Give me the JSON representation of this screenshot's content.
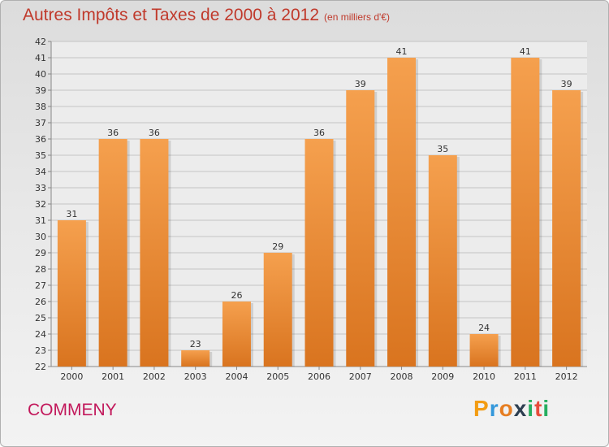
{
  "chart_data": {
    "type": "bar",
    "title": "Autres Impôts et Taxes de 2000 à 2012",
    "unit": "(en milliers d'€)",
    "categories": [
      "2000",
      "2001",
      "2002",
      "2003",
      "2004",
      "2005",
      "2006",
      "2007",
      "2008",
      "2009",
      "2010",
      "2011",
      "2012"
    ],
    "values": [
      31,
      36,
      36,
      23,
      26,
      29,
      36,
      39,
      41,
      35,
      24,
      41,
      39
    ],
    "ylim": [
      22,
      42
    ],
    "yticks": [
      22,
      23,
      24,
      25,
      26,
      27,
      28,
      29,
      30,
      31,
      32,
      33,
      34,
      35,
      36,
      37,
      38,
      39,
      40,
      41,
      42
    ],
    "grid": true,
    "bar_color_top": "#f5a04e",
    "bar_color_bottom": "#d9741f"
  },
  "footer": {
    "city": "COMMENY",
    "logo": {
      "letters": [
        "P",
        "r",
        "o",
        "x",
        "i",
        "t",
        "i"
      ],
      "colors": [
        "#f39c12",
        "#3498db",
        "#e67e22",
        "#2c3e50",
        "#27ae60",
        "#e74c3c",
        "#27ae60"
      ]
    }
  }
}
